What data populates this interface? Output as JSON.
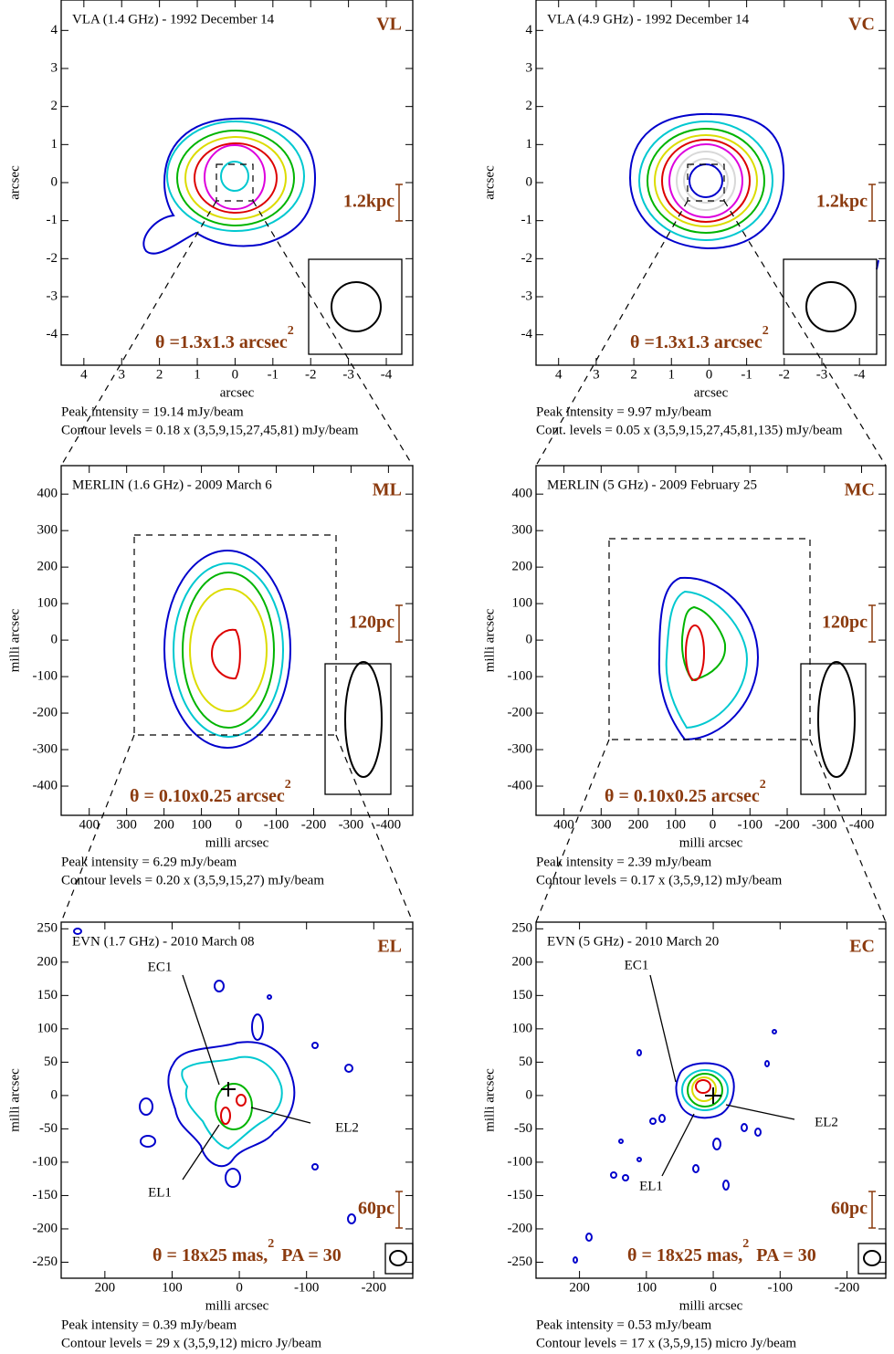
{
  "chart_data": [
    {
      "type": "contour",
      "title": "VLA (1.4 GHz) - 1992 December 14",
      "label": "VL",
      "scale": "1.2kpc",
      "beam": "θ =1.3x1.3 arcsec",
      "beam_sup": "2",
      "xlabel": "arcsec",
      "ylabel": "arcsec",
      "xlim": [
        4.6,
        -4.7
      ],
      "ylim": [
        -4.8,
        4.8
      ],
      "xticks": [
        4,
        3,
        2,
        1,
        0,
        -1,
        -2,
        -3,
        -4
      ],
      "yticks": [
        -4,
        -3,
        -2,
        -1,
        0,
        1,
        2,
        3,
        4
      ],
      "notes": [
        "Peak intensity = 19.14 mJy/beam",
        "Contour levels = 0.18 x (3,5,9,15,27,45,81) mJy/beam"
      ]
    },
    {
      "type": "contour",
      "title": "VLA (4.9 GHz) - 1992 December 14",
      "label": "VC",
      "scale": "1.2kpc",
      "beam": "θ =1.3x1.3 arcsec",
      "beam_sup": "2",
      "xlabel": "arcsec",
      "ylabel": "arcsec",
      "xlim": [
        4.6,
        -4.7
      ],
      "ylim": [
        -4.8,
        4.8
      ],
      "xticks": [
        4,
        3,
        2,
        1,
        0,
        -1,
        -2,
        -3,
        -4
      ],
      "yticks": [
        -4,
        -3,
        -2,
        -1,
        0,
        1,
        2,
        3,
        4
      ],
      "notes": [
        "Peak intensity = 9.97 mJy/beam",
        "Cont. levels = 0.05 x (3,5,9,15,27,45,81,135) mJy/beam"
      ]
    },
    {
      "type": "contour",
      "title": "MERLIN (1.6 GHz) - 2009 March 6",
      "label": "ML",
      "scale": "120pc",
      "beam": "θ = 0.10x0.25 arcsec",
      "beam_sup": "2",
      "xlabel": "milli arcsec",
      "ylabel": "milli arcsec",
      "xlim": [
        475,
        -465
      ],
      "ylim": [
        -480,
        478
      ],
      "xticks": [
        400,
        300,
        200,
        100,
        0,
        -100,
        -200,
        -300,
        -400
      ],
      "yticks": [
        -400,
        -300,
        -200,
        -100,
        0,
        100,
        200,
        300,
        400
      ],
      "notes": [
        "Peak intensity = 6.29 mJy/beam",
        "Contour levels = 0.20 x (3,5,9,15,27) mJy/beam"
      ]
    },
    {
      "type": "contour",
      "title": "MERLIN (5 GHz) - 2009 February 25",
      "label": "MC",
      "scale": "120pc",
      "beam": "θ = 0.10x0.25 arcsec",
      "beam_sup": "2",
      "xlabel": "milli arcsec",
      "ylabel": "milli arcsec",
      "xlim": [
        475,
        -465
      ],
      "ylim": [
        -480,
        478
      ],
      "xticks": [
        400,
        300,
        200,
        100,
        0,
        -100,
        -200,
        -300,
        -400
      ],
      "yticks": [
        -400,
        -300,
        -200,
        -100,
        0,
        100,
        200,
        300,
        400
      ],
      "notes": [
        "Peak intensity = 2.39 mJy/beam",
        "Contour levels = 0.17 x (3,5,9,12) mJy/beam"
      ]
    },
    {
      "type": "contour",
      "title": "EVN (1.7 GHz) - 2010 March 08",
      "label": "EL",
      "scale": "60pc",
      "beam": "θ = 18x25 mas,",
      "beam_sup": "2",
      "beam_pa": "PA = 30",
      "xlabel": "milli arcsec",
      "ylabel": "milli arcsec",
      "xlim": [
        265,
        -258
      ],
      "ylim": [
        -274,
        260
      ],
      "xticks": [
        200,
        100,
        0,
        -100,
        -200
      ],
      "yticks": [
        -250,
        -200,
        -150,
        -100,
        -50,
        0,
        50,
        100,
        150,
        200,
        250
      ],
      "annotations": [
        "EC1",
        "EL2",
        "EL1"
      ],
      "notes": [
        "Peak intensity =  0.39 mJy/beam",
        "Contour levels = 29 x (3,5,9,12) micro Jy/beam"
      ]
    },
    {
      "type": "contour",
      "title": "EVN (5 GHz) - 2010 March 20",
      "label": "EC",
      "scale": "60pc",
      "beam": "θ = 18x25 mas,",
      "beam_sup": "2",
      "beam_pa": "PA = 30",
      "xlabel": "milli arcsec",
      "ylabel": "milli arcsec",
      "xlim": [
        265,
        -258
      ],
      "ylim": [
        -274,
        260
      ],
      "xticks": [
        200,
        100,
        0,
        -100,
        -200
      ],
      "yticks": [
        -250,
        -200,
        -150,
        -100,
        -50,
        0,
        50,
        100,
        150,
        200,
        250
      ],
      "annotations": [
        "EC1",
        "EL2",
        "EL1"
      ],
      "notes": [
        "Peak intensity =  0.53 mJy/beam",
        "Contour levels = 17 x (3,5,9,15) micro Jy/beam"
      ]
    }
  ]
}
